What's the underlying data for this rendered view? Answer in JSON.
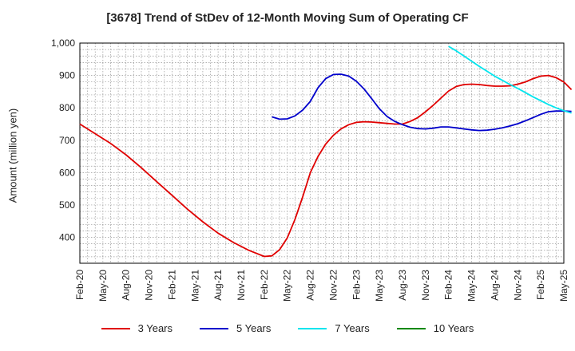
{
  "chart_data": {
    "type": "line",
    "title": "[3678]  Trend of StDev of 12-Month Moving Sum of Operating CF",
    "xlabel": "",
    "ylabel": "Amount (million yen)",
    "ylim": [
      320,
      1000
    ],
    "yticks": [
      400,
      500,
      600,
      700,
      800,
      900,
      1000
    ],
    "ytick_labels": [
      "400",
      "500",
      "600",
      "700",
      "800",
      "900",
      "1,000"
    ],
    "xlim": [
      "2020-02",
      "2025-05"
    ],
    "xtick_labels": [
      "Feb-20",
      "May-20",
      "Aug-20",
      "Nov-20",
      "Feb-21",
      "May-21",
      "Aug-21",
      "Nov-21",
      "Feb-22",
      "May-22",
      "Aug-22",
      "Nov-22",
      "Feb-23",
      "May-23",
      "Aug-23",
      "Nov-23",
      "Feb-24",
      "May-24",
      "Aug-24",
      "Nov-24",
      "Feb-25",
      "May-25"
    ],
    "grid": true,
    "legend_position": "bottom",
    "series": [
      {
        "name": "3 Years",
        "color": "#e00000",
        "points": [
          [
            "2020-02",
            750
          ],
          [
            "2020-04",
            720
          ],
          [
            "2020-06",
            690
          ],
          [
            "2020-08",
            655
          ],
          [
            "2020-10",
            615
          ],
          [
            "2020-12",
            572
          ],
          [
            "2021-02",
            530
          ],
          [
            "2021-04",
            487
          ],
          [
            "2021-06",
            448
          ],
          [
            "2021-08",
            413
          ],
          [
            "2021-10",
            384
          ],
          [
            "2021-12",
            360
          ],
          [
            "2022-02",
            341
          ],
          [
            "2022-03",
            343
          ],
          [
            "2022-04",
            362
          ],
          [
            "2022-05",
            398
          ],
          [
            "2022-06",
            455
          ],
          [
            "2022-07",
            525
          ],
          [
            "2022-08",
            600
          ],
          [
            "2022-09",
            650
          ],
          [
            "2022-10",
            688
          ],
          [
            "2022-11",
            715
          ],
          [
            "2022-12",
            735
          ],
          [
            "2023-01",
            748
          ],
          [
            "2023-02",
            755
          ],
          [
            "2023-03",
            757
          ],
          [
            "2023-04",
            756
          ],
          [
            "2023-05",
            754
          ],
          [
            "2023-06",
            752
          ],
          [
            "2023-07",
            750
          ],
          [
            "2023-08",
            750
          ],
          [
            "2023-09",
            758
          ],
          [
            "2023-10",
            770
          ],
          [
            "2023-11",
            788
          ],
          [
            "2023-12",
            808
          ],
          [
            "2024-01",
            830
          ],
          [
            "2024-02",
            852
          ],
          [
            "2024-03",
            866
          ],
          [
            "2024-04",
            872
          ],
          [
            "2024-05",
            873
          ],
          [
            "2024-06",
            872
          ],
          [
            "2024-07",
            869
          ],
          [
            "2024-08",
            867
          ],
          [
            "2024-09",
            867
          ],
          [
            "2024-10",
            868
          ],
          [
            "2024-11",
            873
          ],
          [
            "2024-12",
            880
          ],
          [
            "2025-01",
            890
          ],
          [
            "2025-02",
            898
          ],
          [
            "2025-03",
            900
          ],
          [
            "2025-04",
            893
          ],
          [
            "2025-05",
            880
          ],
          [
            "2025-06",
            856
          ]
        ]
      },
      {
        "name": "5 Years",
        "color": "#0000cc",
        "points": [
          [
            "2022-03",
            772
          ],
          [
            "2022-04",
            765
          ],
          [
            "2022-05",
            766
          ],
          [
            "2022-06",
            775
          ],
          [
            "2022-07",
            793
          ],
          [
            "2022-08",
            820
          ],
          [
            "2022-09",
            862
          ],
          [
            "2022-10",
            890
          ],
          [
            "2022-11",
            903
          ],
          [
            "2022-12",
            904
          ],
          [
            "2023-01",
            898
          ],
          [
            "2023-02",
            882
          ],
          [
            "2023-03",
            858
          ],
          [
            "2023-04",
            828
          ],
          [
            "2023-05",
            797
          ],
          [
            "2023-06",
            773
          ],
          [
            "2023-07",
            758
          ],
          [
            "2023-08",
            748
          ],
          [
            "2023-09",
            740
          ],
          [
            "2023-10",
            736
          ],
          [
            "2023-11",
            735
          ],
          [
            "2023-12",
            737
          ],
          [
            "2024-01",
            741
          ],
          [
            "2024-02",
            741
          ],
          [
            "2024-03",
            738
          ],
          [
            "2024-04",
            735
          ],
          [
            "2024-05",
            732
          ],
          [
            "2024-06",
            730
          ],
          [
            "2024-07",
            731
          ],
          [
            "2024-08",
            734
          ],
          [
            "2024-09",
            738
          ],
          [
            "2024-10",
            744
          ],
          [
            "2024-11",
            751
          ],
          [
            "2024-12",
            760
          ],
          [
            "2025-01",
            770
          ],
          [
            "2025-02",
            780
          ],
          [
            "2025-03",
            788
          ],
          [
            "2025-04",
            790
          ],
          [
            "2025-05",
            790
          ],
          [
            "2025-06",
            789
          ]
        ]
      },
      {
        "name": "7 Years",
        "color": "#00e5ee",
        "points": [
          [
            "2024-02",
            990
          ],
          [
            "2024-03",
            976
          ],
          [
            "2024-04",
            960
          ],
          [
            "2024-05",
            944
          ],
          [
            "2024-06",
            928
          ],
          [
            "2024-07",
            913
          ],
          [
            "2024-08",
            898
          ],
          [
            "2024-09",
            885
          ],
          [
            "2024-10",
            872
          ],
          [
            "2024-11",
            860
          ],
          [
            "2024-12",
            847
          ],
          [
            "2025-01",
            834
          ],
          [
            "2025-02",
            822
          ],
          [
            "2025-03",
            810
          ],
          [
            "2025-04",
            800
          ],
          [
            "2025-05",
            791
          ],
          [
            "2025-06",
            784
          ]
        ]
      },
      {
        "name": "10 Years",
        "color": "#008800",
        "points": []
      }
    ]
  }
}
